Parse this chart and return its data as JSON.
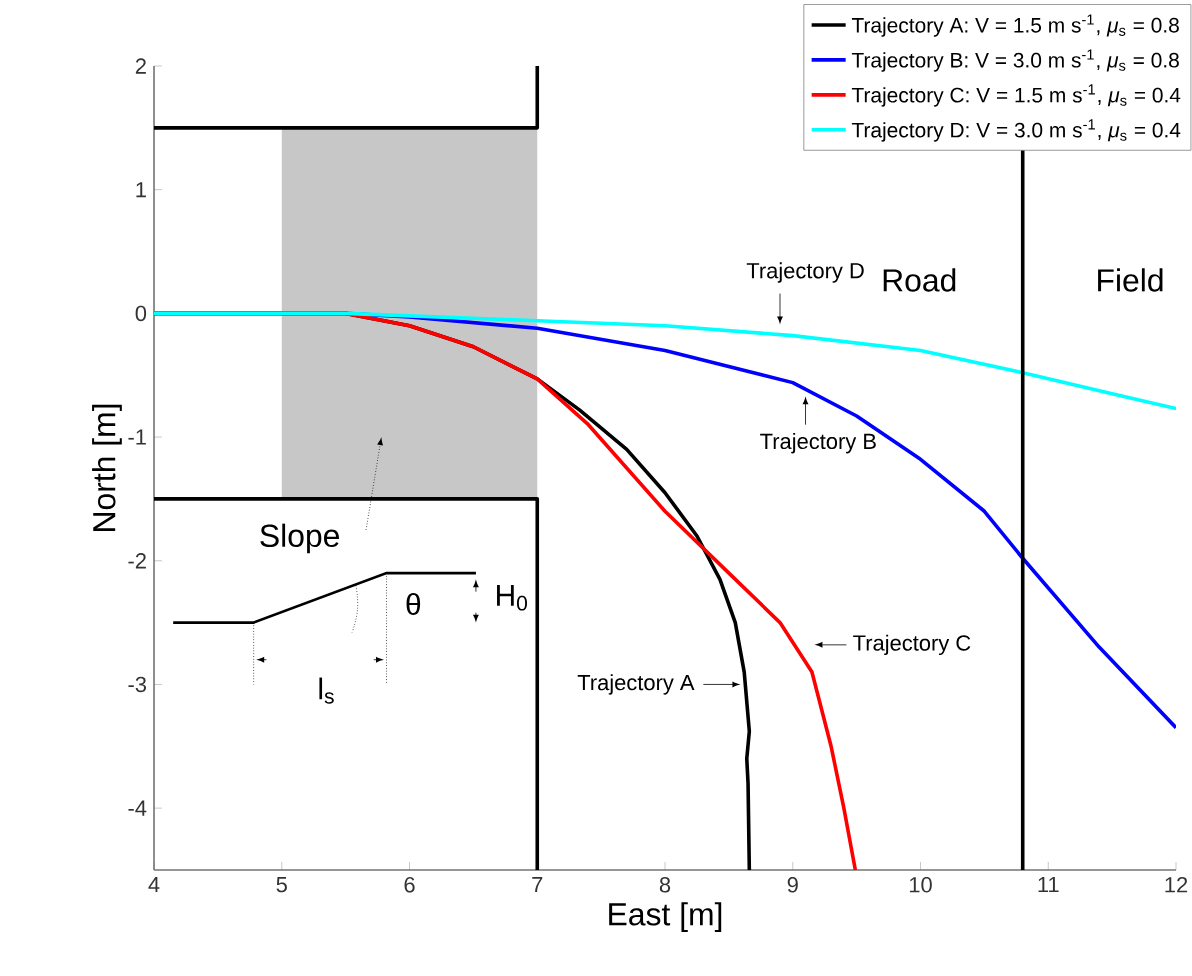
{
  "chart_data": {
    "type": "line",
    "xlabel": "East [m]",
    "ylabel": "North [m]",
    "xlim": [
      4,
      12
    ],
    "ylim": [
      -4.5,
      2
    ],
    "xticks": [
      4,
      5,
      6,
      7,
      8,
      9,
      10,
      11,
      12
    ],
    "yticks": [
      -4,
      -3,
      -2,
      -1,
      0,
      1,
      2
    ],
    "legend": "top right",
    "series": [
      {
        "color": "#000000",
        "x": [
          4,
          7,
          7
        ],
        "values": [
          1.5,
          1.5,
          2
        ]
      },
      {
        "color": "#000000",
        "x": [
          4,
          7,
          7
        ],
        "values": [
          -1.5,
          -1.5,
          -4.5
        ]
      },
      {
        "name": "Trajectory A: V = 1.5 m s$^{-1}$, *μ*$_{s}$ = 0.8",
        "color": "#000000",
        "x": [
          4,
          5.5,
          6,
          6.5,
          7,
          7.33,
          7.7,
          8,
          8.25,
          8.43,
          8.55,
          8.62,
          8.66,
          8.64,
          8.65,
          8.66
        ],
        "values": [
          0,
          0,
          -0.1,
          -0.27,
          -0.53,
          -0.78,
          -1.1,
          -1.45,
          -1.8,
          -2.15,
          -2.5,
          -2.9,
          -3.38,
          -3.6,
          -3.8,
          -4.5
        ]
      },
      {
        "name": "Trajectory B: V = 3.0 m s$^{-1}$, *μ*$_{s}$ = 0.8",
        "color": "#0000ff",
        "x": [
          4,
          5.5,
          6,
          7,
          8,
          9,
          9.5,
          10,
          10.5,
          10.8,
          11.4,
          12
        ],
        "values": [
          0,
          0,
          -0.03,
          -0.12,
          -0.3,
          -0.56,
          -0.83,
          -1.18,
          -1.6,
          -1.98,
          -2.7,
          -3.35
        ]
      },
      {
        "name": "Trajectory C: V = 1.5 m s$^{-1}$, *μ*$_{s}$ = 0.4",
        "color": "#ff0000",
        "x": [
          4,
          5.5,
          6,
          6.5,
          7,
          7.4,
          8,
          8.5,
          8.9,
          9.15,
          9.3,
          9.4,
          9.49
        ],
        "values": [
          0,
          0,
          -0.1,
          -0.27,
          -0.53,
          -0.9,
          -1.6,
          -2.1,
          -2.5,
          -2.9,
          -3.5,
          -4.0,
          -4.5
        ]
      },
      {
        "name": "Trajectory D: V = 3.0 m s$^{-1}$, *μ*$_{s}$ = 0.4",
        "color": "#00ffff",
        "x": [
          4,
          5.5,
          6,
          7,
          8,
          9,
          10,
          10.8,
          11.5,
          12
        ],
        "values": [
          0,
          0,
          -0.02,
          -0.06,
          -0.1,
          -0.18,
          -0.3,
          -0.48,
          -0.65,
          -0.77
        ]
      }
    ],
    "ref_lines": [
      {
        "axis": "x",
        "value": 10.8,
        "color": "#000000"
      }
    ],
    "annotations": [
      {
        "text": "Trajectory A",
        "x": 8.63,
        "y": -3.0
      },
      {
        "text": "Trajectory B",
        "x": 9.1,
        "y": -0.6
      },
      {
        "text": "Trajectory C",
        "x": 9.12,
        "y": -2.68
      },
      {
        "text": "Trajectory D",
        "x": 8.9,
        "y": -0.14
      },
      "Road",
      "Field",
      "Slope",
      "θ",
      "H$_{0}$",
      "l$_{s}$"
    ]
  }
}
